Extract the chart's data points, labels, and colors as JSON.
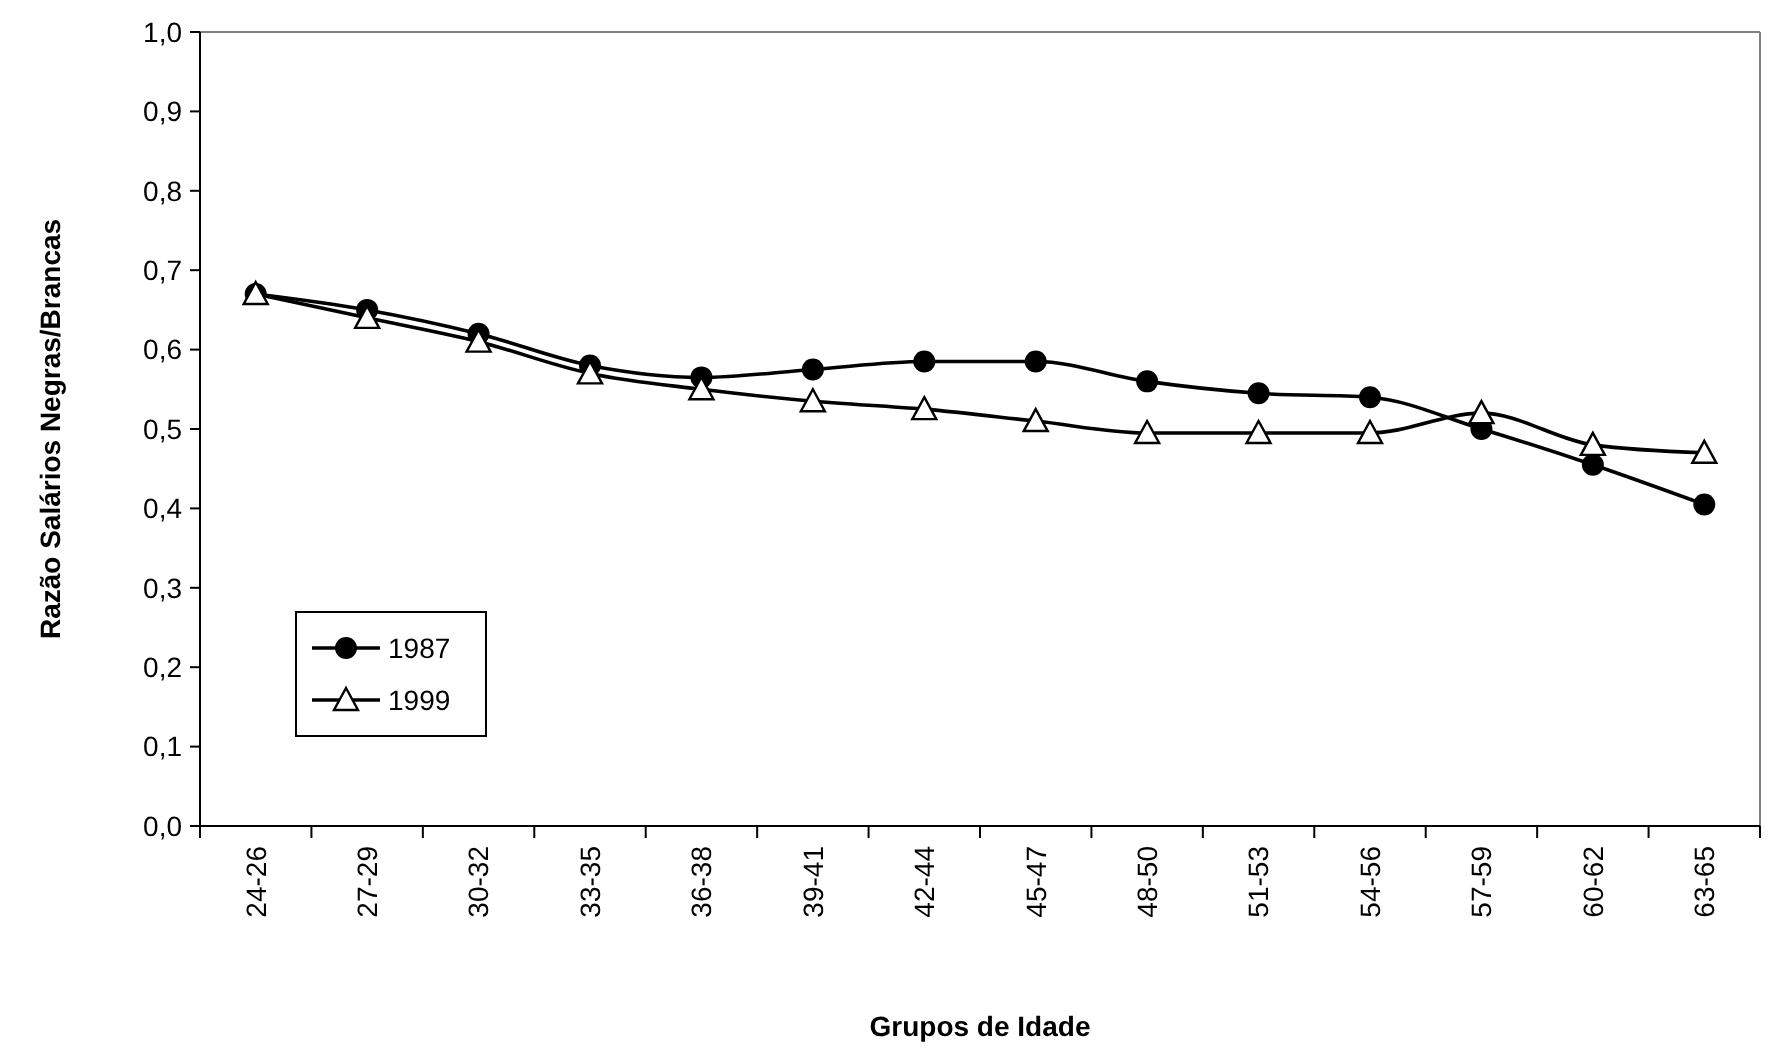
{
  "chart_data": {
    "type": "line",
    "xlabel": "Grupos de Idade",
    "ylabel": "Razão Salários Negras/Brancas",
    "categories": [
      "24-26",
      "27-29",
      "30-32",
      "33-35",
      "36-38",
      "39-41",
      "42-44",
      "45-47",
      "48-50",
      "51-53",
      "54-56",
      "57-59",
      "60-62",
      "63-65"
    ],
    "series": [
      {
        "name": "1987",
        "color": "#000000",
        "marker": "circle",
        "values": [
          0.67,
          0.65,
          0.62,
          0.58,
          0.565,
          0.575,
          0.585,
          0.585,
          0.56,
          0.545,
          0.54,
          0.5,
          0.455,
          0.405
        ]
      },
      {
        "name": "1999",
        "color": "#000000",
        "marker": "triangle",
        "values": [
          0.67,
          0.64,
          0.61,
          0.57,
          0.55,
          0.535,
          0.525,
          0.51,
          0.495,
          0.495,
          0.495,
          0.52,
          0.48,
          0.47
        ]
      }
    ],
    "ylim": [
      0,
      1
    ],
    "yticks": [
      {
        "value": 0,
        "label": "0,0"
      },
      {
        "value": 0.1,
        "label": "0,1"
      },
      {
        "value": 0.2,
        "label": "0,2"
      },
      {
        "value": 0.3,
        "label": "0,3"
      },
      {
        "value": 0.4,
        "label": "0,4"
      },
      {
        "value": 0.5,
        "label": "0,5"
      },
      {
        "value": 0.6,
        "label": "0,6"
      },
      {
        "value": 0.7,
        "label": "0,7"
      },
      {
        "value": 0.8,
        "label": "0,8"
      },
      {
        "value": 0.9,
        "label": "0,9"
      },
      {
        "value": 1,
        "label": "1,0"
      }
    ],
    "grid": false,
    "legend": "bottom left",
    "line_style": "solid"
  }
}
